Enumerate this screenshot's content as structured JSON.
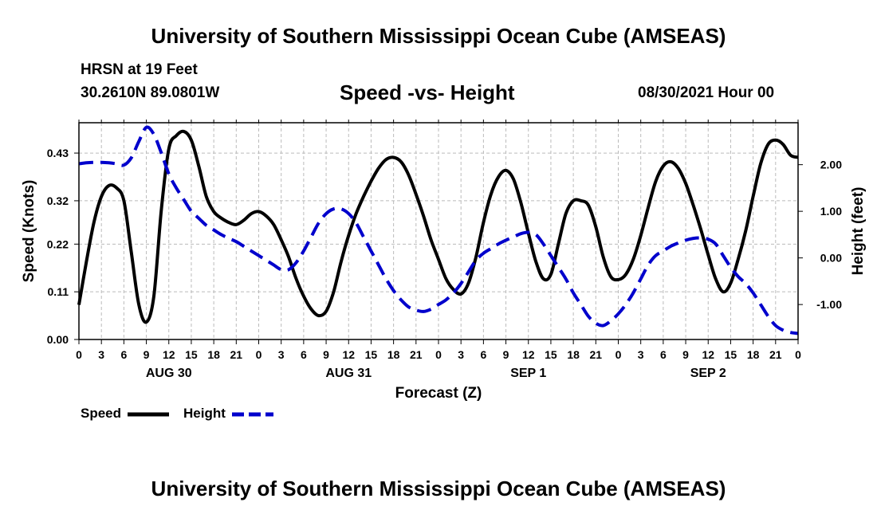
{
  "header": {
    "title": "University of Southern Mississippi Ocean Cube (AMSEAS)",
    "station": "HRSN at 19 Feet",
    "coords": "30.2610N  89.0801W",
    "plot_title": "Speed -vs- Height",
    "datetime": "08/30/2021 Hour 00"
  },
  "footer": {
    "title": "University of Southern Mississippi Ocean Cube (AMSEAS)"
  },
  "legend": {
    "speed_label": "Speed",
    "height_label": "Height"
  },
  "colors": {
    "speed": "#000000",
    "height": "#0000cc",
    "grid": "#bbbbbb"
  },
  "chart_data": {
    "type": "line",
    "title": "Speed -vs- Height",
    "xlabel": "Forecast (Z)",
    "ylabel": "Speed (Knots)",
    "y2label": "Height (feet)",
    "x_unit": "hours since 08/30/2021 00Z",
    "xlim": [
      0,
      96
    ],
    "ylim": [
      0,
      0.5
    ],
    "y2lim": [
      -1.75,
      2.9
    ],
    "x_ticks": [
      0,
      3,
      6,
      9,
      12,
      15,
      18,
      21,
      24,
      27,
      30,
      33,
      36,
      39,
      42,
      45,
      48,
      51,
      54,
      57,
      60,
      63,
      66,
      69,
      72,
      75,
      78,
      81,
      84,
      87,
      90,
      93,
      96
    ],
    "x_tick_labels": [
      "0",
      "3",
      "6",
      "9",
      "12",
      "15",
      "18",
      "21",
      "0",
      "3",
      "6",
      "9",
      "12",
      "15",
      "18",
      "21",
      "0",
      "3",
      "6",
      "9",
      "12",
      "15",
      "18",
      "21",
      "0",
      "3",
      "6",
      "9",
      "12",
      "15",
      "18",
      "21",
      "0"
    ],
    "date_labels": [
      {
        "x": 12,
        "label": "AUG 30"
      },
      {
        "x": 36,
        "label": "AUG 31"
      },
      {
        "x": 60,
        "label": "SEP 1"
      },
      {
        "x": 84,
        "label": "SEP 2"
      }
    ],
    "y_ticks": [
      0.0,
      0.11,
      0.22,
      0.32,
      0.43
    ],
    "y_tick_labels": [
      "0.00",
      "0.11",
      "0.22",
      "0.32",
      "0.43"
    ],
    "y2_ticks": [
      -1.0,
      0.0,
      1.0,
      2.0
    ],
    "y2_tick_labels": [
      "-1.00",
      "0.00",
      "1.00",
      "2.00"
    ],
    "grid": true,
    "series": [
      {
        "name": "Speed",
        "axis": "left",
        "style": "solid",
        "points": [
          [
            0,
            0.08
          ],
          [
            1,
            0.18
          ],
          [
            2,
            0.27
          ],
          [
            3,
            0.33
          ],
          [
            4,
            0.355
          ],
          [
            5,
            0.35
          ],
          [
            6,
            0.32
          ],
          [
            7,
            0.2
          ],
          [
            8,
            0.08
          ],
          [
            9,
            0.04
          ],
          [
            10,
            0.1
          ],
          [
            11,
            0.3
          ],
          [
            12,
            0.44
          ],
          [
            13,
            0.47
          ],
          [
            14,
            0.48
          ],
          [
            15,
            0.46
          ],
          [
            16,
            0.4
          ],
          [
            17,
            0.33
          ],
          [
            18,
            0.295
          ],
          [
            19,
            0.28
          ],
          [
            20,
            0.27
          ],
          [
            21,
            0.265
          ],
          [
            22,
            0.275
          ],
          [
            23,
            0.29
          ],
          [
            24,
            0.295
          ],
          [
            25,
            0.285
          ],
          [
            26,
            0.265
          ],
          [
            27,
            0.23
          ],
          [
            28,
            0.19
          ],
          [
            29,
            0.14
          ],
          [
            30,
            0.1
          ],
          [
            31,
            0.07
          ],
          [
            32,
            0.055
          ],
          [
            33,
            0.065
          ],
          [
            34,
            0.11
          ],
          [
            35,
            0.18
          ],
          [
            36,
            0.24
          ],
          [
            37,
            0.29
          ],
          [
            38,
            0.33
          ],
          [
            39,
            0.365
          ],
          [
            40,
            0.395
          ],
          [
            41,
            0.415
          ],
          [
            42,
            0.42
          ],
          [
            43,
            0.41
          ],
          [
            44,
            0.38
          ],
          [
            45,
            0.335
          ],
          [
            46,
            0.285
          ],
          [
            47,
            0.23
          ],
          [
            48,
            0.185
          ],
          [
            49,
            0.14
          ],
          [
            50,
            0.115
          ],
          [
            51,
            0.105
          ],
          [
            52,
            0.13
          ],
          [
            53,
            0.19
          ],
          [
            54,
            0.27
          ],
          [
            55,
            0.335
          ],
          [
            56,
            0.375
          ],
          [
            57,
            0.39
          ],
          [
            58,
            0.37
          ],
          [
            59,
            0.315
          ],
          [
            60,
            0.245
          ],
          [
            61,
            0.18
          ],
          [
            62,
            0.14
          ],
          [
            63,
            0.15
          ],
          [
            64,
            0.22
          ],
          [
            65,
            0.29
          ],
          [
            66,
            0.32
          ],
          [
            67,
            0.32
          ],
          [
            68,
            0.31
          ],
          [
            69,
            0.26
          ],
          [
            70,
            0.19
          ],
          [
            71,
            0.145
          ],
          [
            72,
            0.138
          ],
          [
            73,
            0.15
          ],
          [
            74,
            0.185
          ],
          [
            75,
            0.24
          ],
          [
            76,
            0.305
          ],
          [
            77,
            0.365
          ],
          [
            78,
            0.4
          ],
          [
            79,
            0.41
          ],
          [
            80,
            0.395
          ],
          [
            81,
            0.36
          ],
          [
            82,
            0.31
          ],
          [
            83,
            0.255
          ],
          [
            84,
            0.195
          ],
          [
            85,
            0.14
          ],
          [
            86,
            0.11
          ],
          [
            87,
            0.13
          ],
          [
            88,
            0.185
          ],
          [
            89,
            0.25
          ],
          [
            90,
            0.33
          ],
          [
            91,
            0.405
          ],
          [
            92,
            0.45
          ],
          [
            93,
            0.46
          ],
          [
            94,
            0.45
          ],
          [
            95,
            0.425
          ],
          [
            96,
            0.42
          ]
        ]
      },
      {
        "name": "Height",
        "axis": "right",
        "style": "dashed",
        "points": [
          [
            0,
            2.02
          ],
          [
            1,
            2.04
          ],
          [
            2,
            2.05
          ],
          [
            3,
            2.05
          ],
          [
            4,
            2.04
          ],
          [
            5,
            2.02
          ],
          [
            6,
            1.99
          ],
          [
            7,
            2.15
          ],
          [
            8,
            2.5
          ],
          [
            9,
            2.8
          ],
          [
            10,
            2.65
          ],
          [
            11,
            2.25
          ],
          [
            12,
            1.8
          ],
          [
            13,
            1.5
          ],
          [
            14,
            1.25
          ],
          [
            15,
            1.0
          ],
          [
            16,
            0.85
          ],
          [
            17,
            0.7
          ],
          [
            18,
            0.6
          ],
          [
            19,
            0.5
          ],
          [
            20,
            0.42
          ],
          [
            21,
            0.35
          ],
          [
            22,
            0.25
          ],
          [
            23,
            0.15
          ],
          [
            24,
            0.05
          ],
          [
            25,
            -0.05
          ],
          [
            26,
            -0.15
          ],
          [
            27,
            -0.25
          ],
          [
            28,
            -0.25
          ],
          [
            29,
            -0.1
          ],
          [
            30,
            0.15
          ],
          [
            31,
            0.45
          ],
          [
            32,
            0.75
          ],
          [
            33,
            0.95
          ],
          [
            34,
            1.05
          ],
          [
            35,
            1.05
          ],
          [
            36,
            0.95
          ],
          [
            37,
            0.75
          ],
          [
            38,
            0.45
          ],
          [
            39,
            0.15
          ],
          [
            40,
            -0.15
          ],
          [
            41,
            -0.45
          ],
          [
            42,
            -0.7
          ],
          [
            43,
            -0.9
          ],
          [
            44,
            -1.05
          ],
          [
            45,
            -1.12
          ],
          [
            46,
            -1.15
          ],
          [
            47,
            -1.1
          ],
          [
            48,
            -1.0
          ],
          [
            49,
            -0.9
          ],
          [
            50,
            -0.75
          ],
          [
            51,
            -0.55
          ],
          [
            52,
            -0.3
          ],
          [
            53,
            -0.05
          ],
          [
            54,
            0.1
          ],
          [
            55,
            0.2
          ],
          [
            56,
            0.3
          ],
          [
            57,
            0.38
          ],
          [
            58,
            0.45
          ],
          [
            59,
            0.52
          ],
          [
            60,
            0.55
          ],
          [
            61,
            0.5
          ],
          [
            62,
            0.3
          ],
          [
            63,
            0.05
          ],
          [
            64,
            -0.2
          ],
          [
            65,
            -0.45
          ],
          [
            66,
            -0.75
          ],
          [
            67,
            -1.0
          ],
          [
            68,
            -1.25
          ],
          [
            69,
            -1.4
          ],
          [
            70,
            -1.45
          ],
          [
            71,
            -1.35
          ],
          [
            72,
            -1.2
          ],
          [
            73,
            -1.0
          ],
          [
            74,
            -0.75
          ],
          [
            75,
            -0.45
          ],
          [
            76,
            -0.15
          ],
          [
            77,
            0.05
          ],
          [
            78,
            0.15
          ],
          [
            79,
            0.25
          ],
          [
            80,
            0.32
          ],
          [
            81,
            0.38
          ],
          [
            82,
            0.42
          ],
          [
            83,
            0.43
          ],
          [
            84,
            0.4
          ],
          [
            85,
            0.3
          ],
          [
            86,
            0.05
          ],
          [
            87,
            -0.2
          ],
          [
            88,
            -0.4
          ],
          [
            89,
            -0.55
          ],
          [
            90,
            -0.75
          ],
          [
            91,
            -1.0
          ],
          [
            92,
            -1.25
          ],
          [
            93,
            -1.45
          ],
          [
            94,
            -1.55
          ],
          [
            95,
            -1.6
          ],
          [
            96,
            -1.62
          ]
        ]
      }
    ]
  }
}
